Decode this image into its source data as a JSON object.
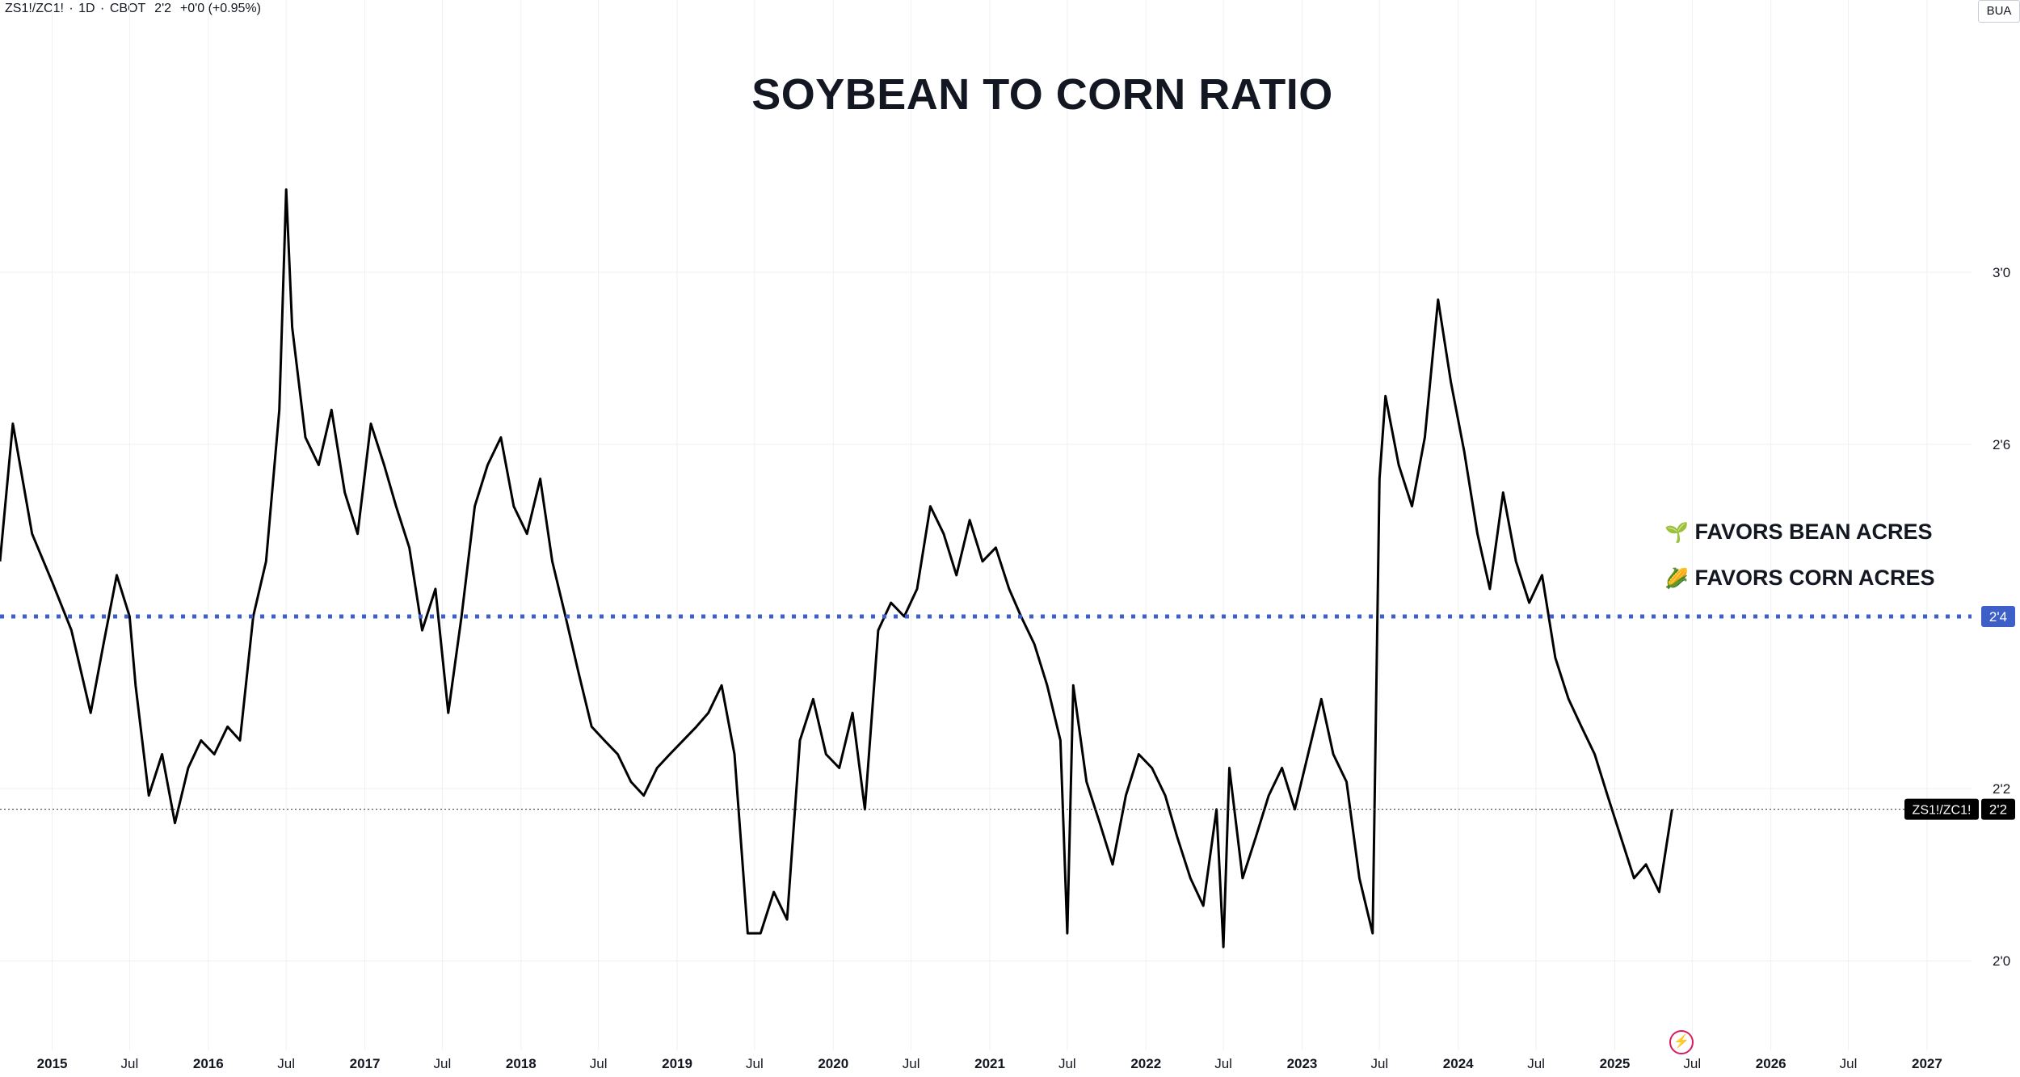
{
  "header": {
    "symbol": "ZS1!/ZC1!",
    "interval": "1D",
    "exchange": "CBOT",
    "price": "2'2",
    "change": "+0'0 (+0.95%)",
    "separator": "·"
  },
  "top_right_badge": "BUA",
  "annotations": {
    "bean": {
      "icon": "seedling-icon",
      "glyph": "🌱",
      "text": "FAVORS BEAN ACRES",
      "color": "#2e7d32"
    },
    "corn": {
      "icon": "corn-icon",
      "glyph": "🌽",
      "text": "FAVORS CORN ACRES",
      "color": "#f9a825"
    }
  },
  "colors": {
    "line": "#000000",
    "threshold": "#3f5fc8",
    "grid": "#eef0f3",
    "background": "#ffffff"
  },
  "chart_data": {
    "type": "line",
    "title": "SOYBEAN TO CORN RATIO",
    "series": [
      {
        "x": [
          "2014-09-01",
          "2014-10-01",
          "2014-11-15",
          "2015-01-01",
          "2015-02-15",
          "2015-04-01",
          "2015-05-01",
          "2015-06-01",
          "2015-07-01",
          "2015-07-15",
          "2015-08-15",
          "2015-09-15",
          "2015-10-15",
          "2015-11-15",
          "2015-12-15",
          "2016-01-15",
          "2016-02-15",
          "2016-03-15",
          "2016-04-15",
          "2016-05-15",
          "2016-06-15",
          "2016-07-01",
          "2016-07-15",
          "2016-08-15",
          "2016-09-15",
          "2016-10-15",
          "2016-11-15",
          "2016-12-15",
          "2017-01-15",
          "2017-02-15",
          "2017-03-15",
          "2017-04-15",
          "2017-05-15",
          "2017-06-15",
          "2017-07-15",
          "2017-08-15",
          "2017-09-15",
          "2017-10-15",
          "2017-11-15",
          "2017-12-15",
          "2018-01-15",
          "2018-02-15",
          "2018-03-15",
          "2018-04-15",
          "2018-05-15",
          "2018-06-15",
          "2018-07-15",
          "2018-08-15",
          "2018-09-15",
          "2018-10-15",
          "2018-11-15",
          "2018-12-15",
          "2019-01-15",
          "2019-02-15",
          "2019-03-15",
          "2019-04-15",
          "2019-05-15",
          "2019-06-15",
          "2019-07-15",
          "2019-08-15",
          "2019-09-15",
          "2019-10-15",
          "2019-11-15",
          "2019-12-15",
          "2020-01-15",
          "2020-02-15",
          "2020-03-15",
          "2020-04-15",
          "2020-05-15",
          "2020-06-15",
          "2020-07-15",
          "2020-08-15",
          "2020-09-15",
          "2020-10-15",
          "2020-11-15",
          "2020-12-15",
          "2021-01-15",
          "2021-02-15",
          "2021-03-15",
          "2021-04-15",
          "2021-05-15",
          "2021-06-15",
          "2021-07-01",
          "2021-07-15",
          "2021-08-15",
          "2021-09-15",
          "2021-10-15",
          "2021-11-15",
          "2021-12-15",
          "2022-01-15",
          "2022-02-15",
          "2022-03-15",
          "2022-04-15",
          "2022-05-15",
          "2022-06-15",
          "2022-07-01",
          "2022-07-15",
          "2022-08-15",
          "2022-09-15",
          "2022-10-15",
          "2022-11-15",
          "2022-12-15",
          "2023-01-15",
          "2023-02-15",
          "2023-03-15",
          "2023-04-15",
          "2023-05-15",
          "2023-06-15",
          "2023-07-01",
          "2023-07-15",
          "2023-08-15",
          "2023-09-15",
          "2023-10-15",
          "2023-11-15",
          "2023-12-15",
          "2024-01-15",
          "2024-02-15",
          "2024-03-15",
          "2024-04-15",
          "2024-05-15",
          "2024-06-15",
          "2024-07-15",
          "2024-08-15",
          "2024-09-15",
          "2024-10-15",
          "2024-11-15",
          "2024-12-15",
          "2025-01-15",
          "2025-02-15",
          "2025-03-15",
          "2025-04-15",
          "2025-05-15"
        ],
        "y": [
          2.58,
          2.78,
          2.62,
          2.55,
          2.48,
          2.36,
          2.46,
          2.56,
          2.5,
          2.4,
          2.24,
          2.3,
          2.2,
          2.28,
          2.32,
          2.3,
          2.34,
          2.32,
          2.5,
          2.58,
          2.8,
          3.12,
          2.92,
          2.76,
          2.72,
          2.8,
          2.68,
          2.62,
          2.78,
          2.72,
          2.66,
          2.6,
          2.48,
          2.54,
          2.36,
          2.5,
          2.66,
          2.72,
          2.76,
          2.66,
          2.62,
          2.7,
          2.58,
          2.5,
          2.42,
          2.34,
          2.32,
          2.3,
          2.26,
          2.24,
          2.28,
          2.3,
          2.32,
          2.34,
          2.36,
          2.4,
          2.3,
          2.04,
          2.04,
          2.1,
          2.06,
          2.32,
          2.38,
          2.3,
          2.28,
          2.36,
          2.22,
          2.48,
          2.52,
          2.5,
          2.54,
          2.66,
          2.62,
          2.56,
          2.64,
          2.58,
          2.6,
          2.54,
          2.5,
          2.46,
          2.4,
          2.32,
          2.04,
          2.4,
          2.26,
          2.2,
          2.14,
          2.24,
          2.3,
          2.28,
          2.24,
          2.18,
          2.12,
          2.08,
          2.22,
          2.02,
          2.28,
          2.12,
          2.18,
          2.24,
          2.28,
          2.22,
          2.3,
          2.38,
          2.3,
          2.26,
          2.12,
          2.04,
          2.7,
          2.82,
          2.72,
          2.66,
          2.76,
          2.96,
          2.84,
          2.74,
          2.62,
          2.54,
          2.68,
          2.58,
          2.52,
          2.56,
          2.44,
          2.38,
          2.34,
          2.3,
          2.24,
          2.18,
          2.12,
          2.14,
          2.1,
          2.22
        ],
        "line_label": "ZS1!/ZC1!",
        "last_value_label": "2'2"
      }
    ],
    "reference_line": {
      "value": 2.5,
      "label": "2'4",
      "style": "dotted"
    },
    "last_price_line": {
      "value": 2.22,
      "label": "2'2"
    },
    "xlim": [
      "2014-09-01",
      "2027-04-15"
    ],
    "ylim": [
      1.87,
      3.36
    ],
    "y_ticks": [
      {
        "value": 2.0,
        "label": "2'0"
      },
      {
        "value": 2.25,
        "label": "2'2"
      },
      {
        "value": 2.5,
        "label": "2'4"
      },
      {
        "value": 2.75,
        "label": "2'6"
      },
      {
        "value": 3.0,
        "label": "3'0"
      }
    ],
    "x_ticks": [
      {
        "date": "2015-01-01",
        "label": "2015",
        "major": true
      },
      {
        "date": "2015-07-01",
        "label": "Jul",
        "major": false
      },
      {
        "date": "2016-01-01",
        "label": "2016",
        "major": true
      },
      {
        "date": "2016-07-01",
        "label": "Jul",
        "major": false
      },
      {
        "date": "2017-01-01",
        "label": "2017",
        "major": true
      },
      {
        "date": "2017-07-01",
        "label": "Jul",
        "major": false
      },
      {
        "date": "2018-01-01",
        "label": "2018",
        "major": true
      },
      {
        "date": "2018-07-01",
        "label": "Jul",
        "major": false
      },
      {
        "date": "2019-01-01",
        "label": "2019",
        "major": true
      },
      {
        "date": "2019-07-01",
        "label": "Jul",
        "major": false
      },
      {
        "date": "2020-01-01",
        "label": "2020",
        "major": true
      },
      {
        "date": "2020-07-01",
        "label": "Jul",
        "major": false
      },
      {
        "date": "2021-01-01",
        "label": "2021",
        "major": true
      },
      {
        "date": "2021-07-01",
        "label": "Jul",
        "major": false
      },
      {
        "date": "2022-01-01",
        "label": "2022",
        "major": true
      },
      {
        "date": "2022-07-01",
        "label": "Jul",
        "major": false
      },
      {
        "date": "2023-01-01",
        "label": "2023",
        "major": true
      },
      {
        "date": "2023-07-01",
        "label": "Jul",
        "major": false
      },
      {
        "date": "2024-01-01",
        "label": "2024",
        "major": true
      },
      {
        "date": "2024-07-01",
        "label": "Jul",
        "major": false
      },
      {
        "date": "2025-01-01",
        "label": "2025",
        "major": true
      },
      {
        "date": "2025-07-01",
        "label": "Jul",
        "major": false
      },
      {
        "date": "2026-01-01",
        "label": "2026",
        "major": true
      },
      {
        "date": "2026-07-01",
        "label": "Jul",
        "major": false
      },
      {
        "date": "2027-01-01",
        "label": "2027",
        "major": true
      }
    ],
    "grid": true
  }
}
